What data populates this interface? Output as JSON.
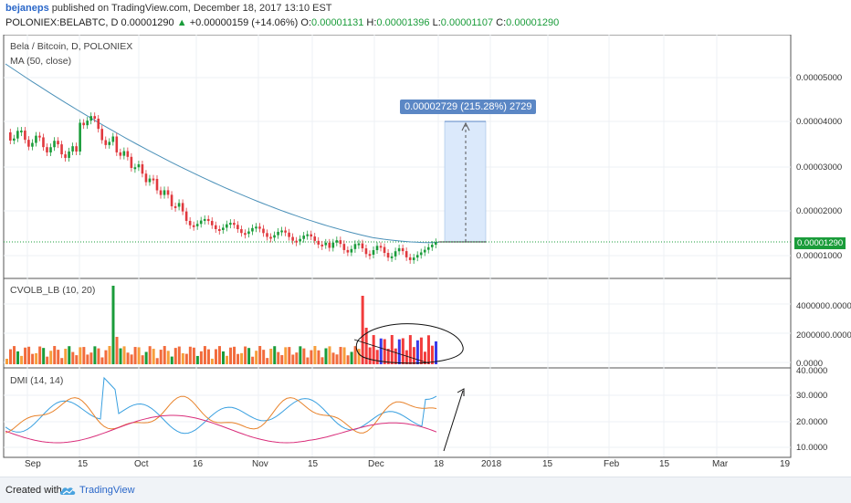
{
  "header": {
    "author": "bejaneps",
    "published_text": "published on TradingView.com, December 18, 2017 13:10 EST",
    "symbol": "POLONIEX:BELABTC, D",
    "close_value": "0.00001290",
    "up_arrow": "▲",
    "change": "+0.00000159 (+14.06%)",
    "o_label": "O:",
    "o_value": "0.00001131",
    "h_label": "H:",
    "h_value": "0.00001396",
    "l_label": "L:",
    "l_value": "0.00001107",
    "c_label": "C:",
    "c_value": "0.00001290"
  },
  "main_pane": {
    "title": "Bela / Bitcoin, D, POLONIEX",
    "indicator": "MA (50, close)",
    "y_ticks": [
      "0.00005000",
      "0.00004000",
      "0.00003000",
      "0.00002000",
      "0.00001000"
    ],
    "last_price_tag": "0.00001290",
    "measure_label": "0.00002729 (215.28%) 2729"
  },
  "volume_pane": {
    "title": "CVOLB_LB (10, 20)",
    "y_ticks": [
      "4000000.0000",
      "2000000.0000",
      "0.0000"
    ]
  },
  "dmi_pane": {
    "title": "DMI (14, 14)",
    "y_ticks": [
      "40.0000",
      "30.0000",
      "20.0000",
      "10.0000"
    ]
  },
  "x_axis": {
    "labels": [
      "Sep",
      "15",
      "Oct",
      "16",
      "Nov",
      "15",
      "Dec",
      "18",
      "2018",
      "15",
      "Feb",
      "15",
      "Mar",
      "19"
    ]
  },
  "footer": {
    "created_with": "Created with",
    "brand": "TradingView"
  },
  "colors": {
    "up": "#1a9c3a",
    "down": "#e0393e",
    "ma_line": "#4a90b8",
    "plus_di": "#3aa0e0",
    "minus_di": "#e8822a",
    "adx": "#d92d7a",
    "measure_fill": "#dbe9fb"
  }
}
